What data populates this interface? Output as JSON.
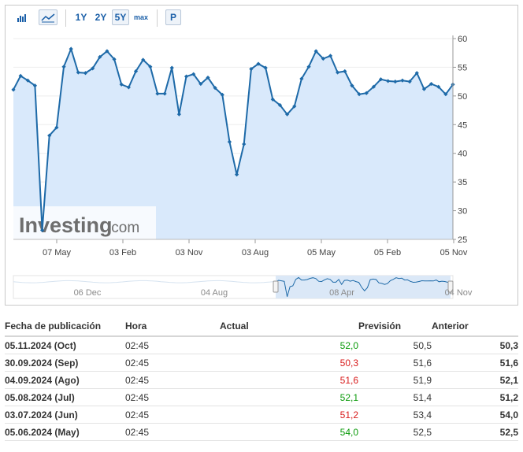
{
  "toolbar": {
    "buttons": [
      {
        "icon": "bar-chart-icon"
      },
      {
        "icon": "area-chart-icon",
        "active": true
      },
      {
        "label": "1Y"
      },
      {
        "label": "2Y"
      },
      {
        "label": "5Y",
        "active": true
      },
      {
        "label": "max"
      },
      {
        "label": "P"
      }
    ]
  },
  "watermark": {
    "brand": "Investing",
    "suffix": ".com"
  },
  "colors": {
    "line": "#1e6aa8",
    "fill": "#d9e9fb",
    "up": "#0a9a0a",
    "down": "#d81b1b"
  },
  "chart_data": {
    "type": "area",
    "ylim": [
      25,
      60
    ],
    "yticks": [
      25,
      30,
      35,
      40,
      45,
      50,
      55,
      60
    ],
    "xticks": [
      "07 May",
      "03 Feb",
      "03 Nov",
      "03 Aug",
      "05 May",
      "05 Feb",
      "05 Nov"
    ],
    "values": [
      51.1,
      53.5,
      52.7,
      51.8,
      26.6,
      43.1,
      44.5,
      55.1,
      58.2,
      54.1,
      54.0,
      54.8,
      56.8,
      57.8,
      56.4,
      52.0,
      51.5,
      54.3,
      56.3,
      55.1,
      50.4,
      50.4,
      54.9,
      46.8,
      53.4,
      53.8,
      52.1,
      53.2,
      51.4,
      50.2,
      42.0,
      36.3,
      41.6,
      54.7,
      55.6,
      54.9,
      49.4,
      48.4,
      46.8,
      48.2,
      53.0,
      55.1,
      57.8,
      56.5,
      57.0,
      54.1,
      54.3,
      51.8,
      50.3,
      50.5,
      51.6,
      52.9,
      52.6,
      52.5,
      52.7,
      52.5,
      54.0,
      51.2,
      52.1,
      51.6,
      50.3,
      52.0
    ]
  },
  "navigator": {
    "labels": [
      "06 Dec",
      "04 Aug",
      "08 Apr",
      "04 Nov"
    ]
  },
  "table": {
    "headers": {
      "date": "Fecha de publicación",
      "time": "Hora",
      "actual": "Actual",
      "forecast": "Previsión",
      "previous": "Anterior"
    },
    "rows": [
      {
        "date": "05.11.2024 (Oct)",
        "time": "02:45",
        "actual": "52,0",
        "actual_color": "green",
        "forecast": "50,5",
        "previous": "50,3"
      },
      {
        "date": "30.09.2024 (Sep)",
        "time": "02:45",
        "actual": "50,3",
        "actual_color": "red",
        "forecast": "51,6",
        "previous": "51,6"
      },
      {
        "date": "04.09.2024 (Ago)",
        "time": "02:45",
        "actual": "51,6",
        "actual_color": "red",
        "forecast": "51,9",
        "previous": "52,1"
      },
      {
        "date": "05.08.2024 (Jul)",
        "time": "02:45",
        "actual": "52,1",
        "actual_color": "green",
        "forecast": "51,4",
        "previous": "51,2"
      },
      {
        "date": "03.07.2024 (Jun)",
        "time": "02:45",
        "actual": "51,2",
        "actual_color": "red",
        "forecast": "53,4",
        "previous": "54,0"
      },
      {
        "date": "05.06.2024 (May)",
        "time": "02:45",
        "actual": "54,0",
        "actual_color": "green",
        "forecast": "52,5",
        "previous": "52,5"
      }
    ]
  }
}
